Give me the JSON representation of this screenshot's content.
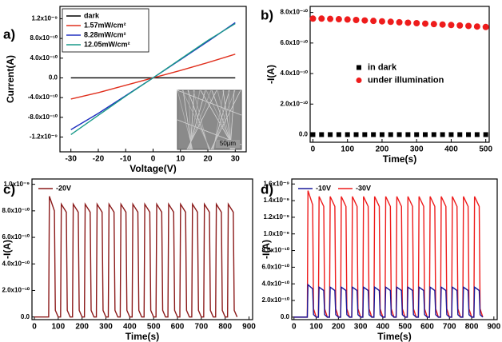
{
  "chart_data": [
    {
      "type": "line",
      "panel_label": "a)",
      "xlabel": "Voltage(V)",
      "ylabel": "Current(A)",
      "inset_label": "50μm",
      "x": [
        -30,
        -20,
        -10,
        0,
        10,
        20,
        30
      ],
      "series": [
        {
          "name": "dark",
          "color": "#000000",
          "values": [
            0,
            0,
            0,
            0,
            0,
            0,
            0
          ]
        },
        {
          "name": "1.57mW/cm²",
          "color": "#e0301e",
          "values": [
            -4.3e-10,
            -3e-10,
            -1.5e-10,
            0,
            1.5e-10,
            3.1e-10,
            4.8e-10
          ]
        },
        {
          "name": "8.28mW/cm²",
          "color": "#2030c0",
          "values": [
            -1.05e-09,
            -7.2e-10,
            -3.6e-10,
            0,
            3.7e-10,
            7.4e-10,
            1.12e-09
          ]
        },
        {
          "name": "12.05mW/cm²",
          "color": "#1a9a8a",
          "values": [
            -1.15e-09,
            -7.6e-10,
            -3.7e-10,
            0,
            3.8e-10,
            7.6e-10,
            1.1e-09
          ]
        }
      ],
      "xlim": [
        -34,
        34
      ],
      "xticks": [
        -30,
        -20,
        -10,
        0,
        10,
        20,
        30
      ],
      "ylim": [
        -1.5e-09,
        1.45e-09
      ],
      "yticks": [
        {
          "value": -1.2e-09,
          "label": "-1.2x10⁻⁹"
        },
        {
          "value": -8e-10,
          "label": "-8.0x10⁻¹⁰"
        },
        {
          "value": -4e-10,
          "label": "-4.0x10⁻¹⁰"
        },
        {
          "value": 0,
          "label": "0.0"
        },
        {
          "value": 4e-10,
          "label": "4.0x10⁻¹⁰"
        },
        {
          "value": 8e-10,
          "label": "8.0x10⁻¹⁰"
        },
        {
          "value": 1.2e-09,
          "label": "1.2x10⁻⁹"
        }
      ],
      "legend": "upper left"
    },
    {
      "type": "scatter",
      "panel_label": "b)",
      "xlabel": "Time(s)",
      "ylabel": "-I(A)",
      "x": [
        0,
        25,
        50,
        75,
        100,
        125,
        150,
        175,
        200,
        225,
        250,
        275,
        300,
        325,
        350,
        375,
        400,
        425,
        450,
        475,
        500
      ],
      "series": [
        {
          "name": "in dark",
          "color": "#000000",
          "marker": "square",
          "values": [
            0,
            0,
            0,
            0,
            0,
            0,
            0,
            0,
            0,
            0,
            0,
            0,
            0,
            0,
            0,
            0,
            0,
            0,
            0,
            0,
            0
          ]
        },
        {
          "name": "under illumination",
          "color": "#ee1c1c",
          "marker": "circle",
          "values": [
            7.6e-10,
            7.6e-10,
            7.58e-10,
            7.56e-10,
            7.54e-10,
            7.51e-10,
            7.48e-10,
            7.45e-10,
            7.42e-10,
            7.39e-10,
            7.36e-10,
            7.33e-10,
            7.3e-10,
            7.27e-10,
            7.24e-10,
            7.21e-10,
            7.18e-10,
            7.15e-10,
            7.12e-10,
            7.08e-10,
            7.05e-10
          ]
        }
      ],
      "xlim": [
        -8,
        510
      ],
      "xticks": [
        0,
        100,
        200,
        300,
        400,
        500
      ],
      "ylim": [
        -5e-11,
        8.4e-10
      ],
      "yticks": [
        {
          "value": 0,
          "label": "0.0"
        },
        {
          "value": 2e-10,
          "label": "2.0x10⁻¹⁰"
        },
        {
          "value": 4e-10,
          "label": "4.0x10⁻¹⁰"
        },
        {
          "value": 6e-10,
          "label": "6.0x10⁻¹⁰"
        },
        {
          "value": 8e-10,
          "label": "8.0x10⁻¹⁰"
        }
      ],
      "legend": "center"
    },
    {
      "type": "line",
      "panel_label": "c)",
      "xlabel": "Time(s)",
      "ylabel": "-I(A)",
      "x": [
        0,
        60,
        63,
        84,
        88,
        100,
        110,
        113,
        134,
        138,
        150,
        160,
        163,
        184,
        188,
        200,
        210,
        213,
        234,
        238,
        250,
        260,
        263,
        284,
        288,
        300,
        310,
        313,
        334,
        338,
        350,
        360,
        363,
        384,
        388,
        400,
        410,
        413,
        434,
        438,
        450,
        460,
        463,
        484,
        488,
        500,
        510,
        513,
        534,
        538,
        550,
        560,
        563,
        584,
        588,
        600,
        610,
        613,
        634,
        638,
        650,
        660,
        663,
        684,
        688,
        700,
        710,
        713,
        734,
        738,
        750,
        760,
        763,
        784,
        788,
        800,
        810,
        813,
        834,
        838,
        850
      ],
      "series": [
        {
          "name": "-20V",
          "color": "#8b1a1a",
          "values": [
            0,
            0,
            9.1e-10,
            8e-10,
            5e-11,
            0,
            0,
            8.5e-10,
            7.9e-10,
            5e-11,
            0,
            0,
            8.5e-10,
            7.9e-10,
            5e-11,
            0,
            0,
            8.5e-10,
            7.9e-10,
            5e-11,
            0,
            0,
            8.5e-10,
            7.9e-10,
            5e-11,
            0,
            0,
            8.5e-10,
            7.9e-10,
            5e-11,
            0,
            0,
            8.5e-10,
            7.9e-10,
            5e-11,
            0,
            0,
            8.5e-10,
            7.9e-10,
            5e-11,
            0,
            0,
            8.5e-10,
            7.9e-10,
            5e-11,
            0,
            0,
            8.5e-10,
            7.9e-10,
            5e-11,
            0,
            0,
            8.5e-10,
            7.9e-10,
            5e-11,
            0,
            0,
            8.5e-10,
            7.9e-10,
            5e-11,
            0,
            0,
            8.5e-10,
            7.9e-10,
            5e-11,
            0,
            0,
            8.5e-10,
            7.9e-10,
            5e-11,
            0,
            0,
            8.5e-10,
            7.9e-10,
            5e-11,
            0,
            0,
            8.5e-10,
            7.9e-10,
            5e-11,
            0
          ]
        }
      ],
      "xlim": [
        -10,
        915
      ],
      "xticks": [
        0,
        100,
        200,
        300,
        400,
        500,
        600,
        700,
        800,
        900
      ],
      "ylim": [
        -2e-11,
        1.04e-09
      ],
      "yticks": [
        {
          "value": 0,
          "label": "0.0"
        },
        {
          "value": 2e-10,
          "label": "2.0x10⁻¹⁰"
        },
        {
          "value": 4e-10,
          "label": "4.0x10⁻¹⁰"
        },
        {
          "value": 6e-10,
          "label": "6.0x10⁻¹⁰"
        },
        {
          "value": 8e-10,
          "label": "8.0x10⁻¹⁰"
        },
        {
          "value": 1e-09,
          "label": "1.0x10⁻⁹"
        }
      ],
      "legend": "upper left"
    },
    {
      "type": "line",
      "panel_label": "d)",
      "xlabel": "Time(s)",
      "ylabel": "-I(A)",
      "x": [
        0,
        60,
        63,
        84,
        88,
        100,
        110,
        113,
        134,
        138,
        150,
        160,
        163,
        184,
        188,
        200,
        210,
        213,
        234,
        238,
        250,
        260,
        263,
        284,
        288,
        300,
        310,
        313,
        334,
        338,
        350,
        360,
        363,
        384,
        388,
        400,
        410,
        413,
        434,
        438,
        450,
        460,
        463,
        484,
        488,
        500,
        510,
        513,
        534,
        538,
        550,
        560,
        563,
        584,
        588,
        600,
        610,
        613,
        634,
        638,
        650,
        660,
        663,
        684,
        688,
        700,
        710,
        713,
        734,
        738,
        750,
        760,
        763,
        784,
        788,
        800,
        810,
        813,
        834,
        838,
        850
      ],
      "series": [
        {
          "name": "-30V",
          "color": "#ee1c1c",
          "values": [
            0,
            0,
            1.52e-09,
            1.35e-09,
            1e-10,
            0,
            0,
            1.45e-09,
            1.33e-09,
            1e-10,
            0,
            0,
            1.45e-09,
            1.33e-09,
            1e-10,
            0,
            0,
            1.45e-09,
            1.33e-09,
            1e-10,
            0,
            0,
            1.45e-09,
            1.33e-09,
            1e-10,
            0,
            0,
            1.45e-09,
            1.33e-09,
            1e-10,
            0,
            0,
            1.45e-09,
            1.33e-09,
            1e-10,
            0,
            0,
            1.45e-09,
            1.33e-09,
            1e-10,
            0,
            0,
            1.45e-09,
            1.33e-09,
            1e-10,
            0,
            0,
            1.45e-09,
            1.33e-09,
            1e-10,
            0,
            0,
            1.45e-09,
            1.33e-09,
            1e-10,
            0,
            0,
            1.45e-09,
            1.33e-09,
            1e-10,
            0,
            0,
            1.45e-09,
            1.33e-09,
            1e-10,
            0,
            0,
            1.45e-09,
            1.33e-09,
            1e-10,
            0,
            0,
            1.45e-09,
            1.33e-09,
            1e-10,
            0,
            0,
            1.45e-09,
            1.33e-09,
            1e-10,
            0
          ]
        },
        {
          "name": "-10V",
          "color": "#1a1a9a",
          "values": [
            0,
            0,
            3.9e-10,
            3.4e-10,
            3e-11,
            0,
            0,
            3.6e-10,
            3.2e-10,
            3e-11,
            0,
            0,
            3.6e-10,
            3.2e-10,
            3e-11,
            0,
            0,
            3.6e-10,
            3.2e-10,
            3e-11,
            0,
            0,
            3.6e-10,
            3.2e-10,
            3e-11,
            0,
            0,
            3.6e-10,
            3.2e-10,
            3e-11,
            0,
            0,
            3.6e-10,
            3.2e-10,
            3e-11,
            0,
            0,
            3.6e-10,
            3.2e-10,
            3e-11,
            0,
            0,
            3.6e-10,
            3.2e-10,
            3e-11,
            0,
            0,
            3.6e-10,
            3.2e-10,
            3e-11,
            0,
            0,
            3.6e-10,
            3.2e-10,
            3e-11,
            0,
            0,
            3.6e-10,
            3.2e-10,
            3e-11,
            0,
            0,
            3.6e-10,
            3.2e-10,
            3e-11,
            0,
            0,
            3.6e-10,
            3.2e-10,
            3e-11,
            0,
            0,
            3.6e-10,
            3.2e-10,
            3e-11,
            0,
            0,
            3.6e-10,
            3.2e-10,
            3e-11,
            0
          ]
        }
      ],
      "xlim": [
        -10,
        915
      ],
      "xticks": [
        0,
        100,
        200,
        300,
        400,
        500,
        600,
        700,
        800,
        900
      ],
      "ylim": [
        -3e-11,
        1.66e-09
      ],
      "yticks": [
        {
          "value": 0,
          "label": "0.0"
        },
        {
          "value": 2e-10,
          "label": "2.0x10⁻¹⁰"
        },
        {
          "value": 4e-10,
          "label": "4.0x10⁻¹⁰"
        },
        {
          "value": 6e-10,
          "label": "6.0x10⁻¹⁰"
        },
        {
          "value": 8e-10,
          "label": "8.0x10⁻¹⁰"
        },
        {
          "value": 1e-09,
          "label": "1.0x10⁻⁹"
        },
        {
          "value": 1.2e-09,
          "label": "1.2x10⁻⁹"
        },
        {
          "value": 1.4e-09,
          "label": "1.4x10⁻⁹"
        },
        {
          "value": 1.6e-09,
          "label": "1.6x10⁻⁹"
        }
      ],
      "legend": "upper left"
    }
  ]
}
